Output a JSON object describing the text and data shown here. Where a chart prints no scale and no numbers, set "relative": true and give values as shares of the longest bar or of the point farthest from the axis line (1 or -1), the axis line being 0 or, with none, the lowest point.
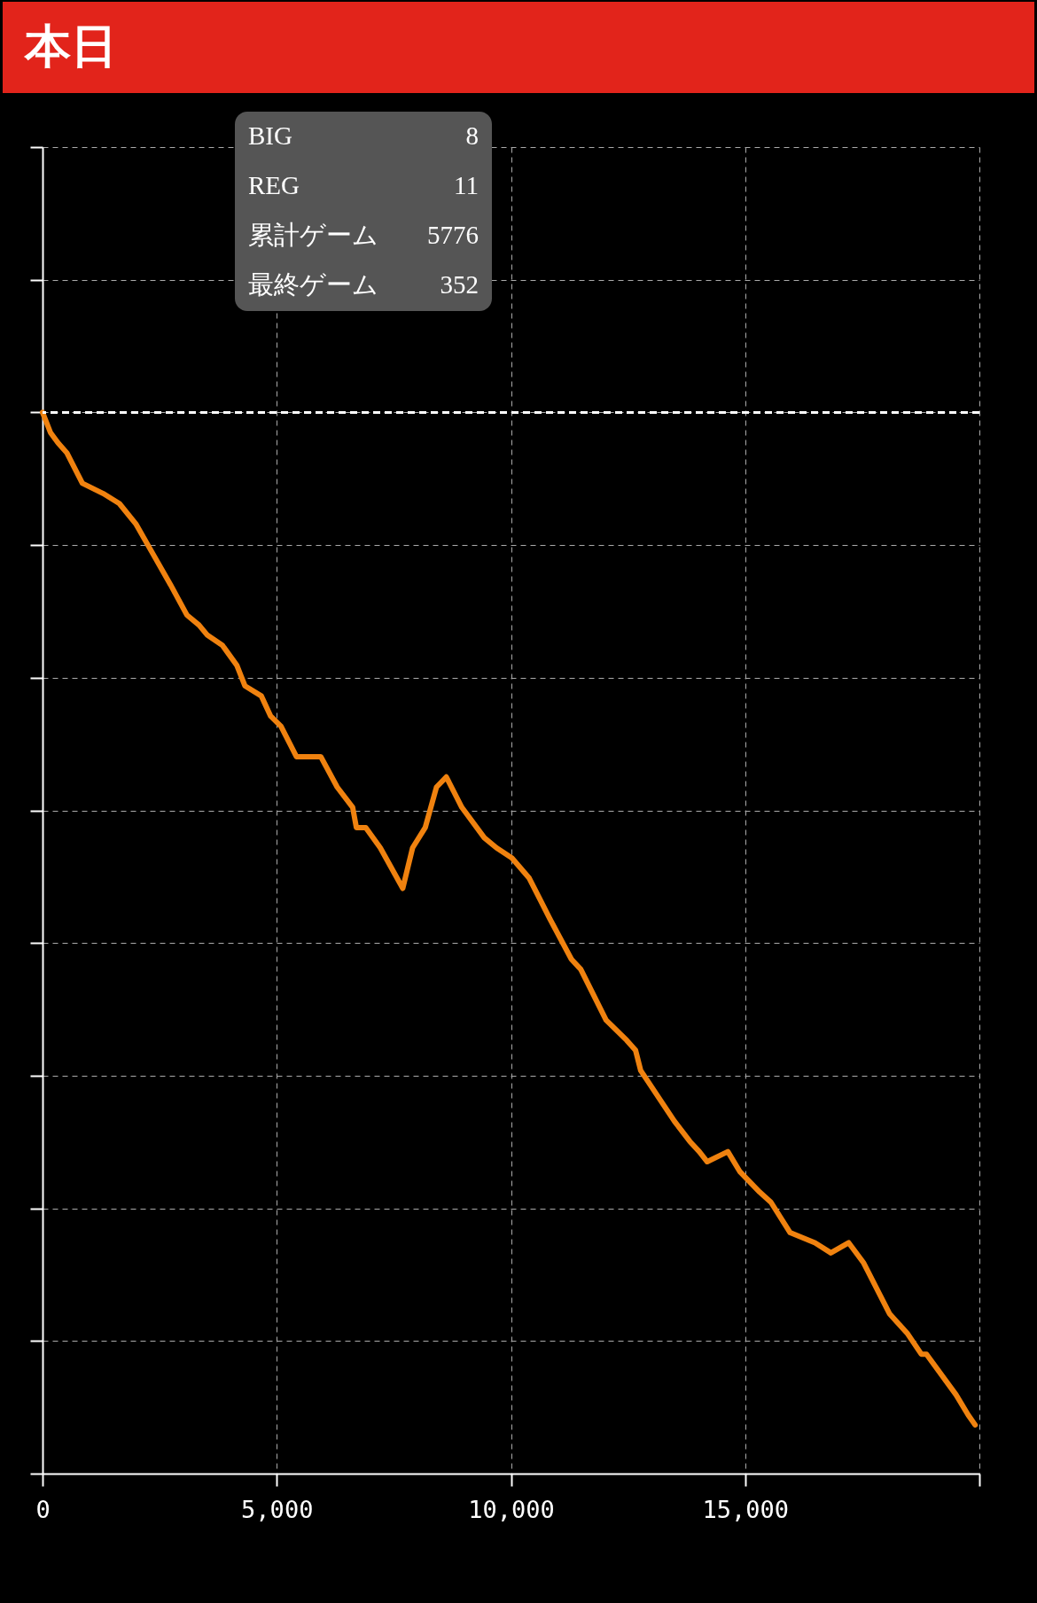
{
  "chart_data": {
    "type": "line",
    "title": "本日",
    "relative": true,
    "x": [
      0,
      170,
      330,
      520,
      850,
      1290,
      1640,
      1990,
      2360,
      2730,
      3080,
      3340,
      3520,
      3840,
      4150,
      4320,
      4670,
      4870,
      5090,
      5420,
      5940,
      6290,
      6620,
      6700,
      6900,
      7210,
      7690,
      7900,
      8170,
      8410,
      8620,
      8950,
      9430,
      9690,
      10020,
      10390,
      10830,
      11290,
      11490,
      12030,
      12470,
      12660,
      12770,
      13490,
      13820,
      14020,
      14190,
      14630,
      14890,
      15310,
      15550,
      15960,
      16490,
      16830,
      17210,
      17530,
      18080,
      18470,
      18760,
      18870,
      19500,
      19760,
      19910
    ],
    "series": [
      {
        "color": "#f0820f",
        "values": [
          0,
          -0.02,
          -0.03,
          -0.04,
          -0.07,
          -0.08,
          -0.09,
          -0.11,
          -0.14,
          -0.17,
          -0.2,
          -0.21,
          -0.22,
          -0.23,
          -0.25,
          -0.27,
          -0.28,
          -0.3,
          -0.31,
          -0.34,
          -0.34,
          -0.37,
          -0.39,
          -0.41,
          -0.41,
          -0.43,
          -0.47,
          -0.43,
          -0.41,
          -0.37,
          -0.36,
          -0.39,
          -0.42,
          -0.43,
          -0.44,
          -0.46,
          -0.5,
          -0.54,
          -0.55,
          -0.6,
          -0.62,
          -0.63,
          -0.65,
          -0.7,
          -0.72,
          -0.73,
          -0.74,
          -0.73,
          -0.75,
          -0.77,
          -0.78,
          -0.81,
          -0.82,
          -0.83,
          -0.82,
          -0.84,
          -0.89,
          -0.91,
          -0.93,
          -0.93,
          -0.97,
          -0.99,
          -1
        ]
      }
    ],
    "xlim": [
      0,
      20000
    ],
    "xticks": [
      0,
      {
        "value": 5000,
        "label": "5,000"
      },
      {
        "value": 10000,
        "label": "10,000"
      },
      {
        "value": 15000,
        "label": "15,000"
      },
      {
        "value": 20000,
        "label": null
      }
    ],
    "ref_lines": [
      {
        "axis": "y",
        "value": 0,
        "color": "#ffffff",
        "line_style": "dashed"
      }
    ],
    "grid": true,
    "annotations": [
      "BIG",
      "8",
      "REG",
      "11",
      "累計ゲーム",
      "5776",
      "最終ゲーム",
      "352"
    ]
  }
}
